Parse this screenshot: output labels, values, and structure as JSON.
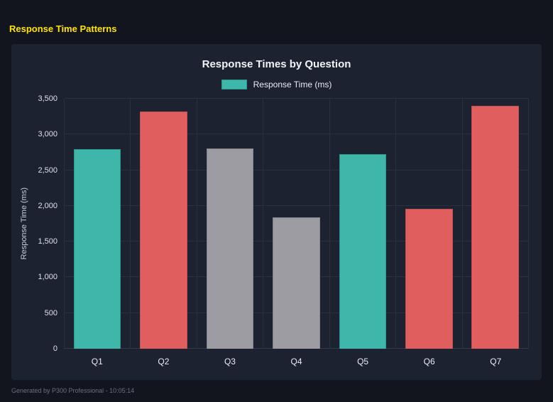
{
  "page": {
    "title": "Response Time Patterns",
    "footer": "Generated by P300 Professional - 10:05:14"
  },
  "chart_data": {
    "type": "bar",
    "title": "Response Times by Question",
    "categories": [
      "Q1",
      "Q2",
      "Q3",
      "Q4",
      "Q5",
      "Q6",
      "Q7"
    ],
    "values": [
      2790,
      3320,
      2800,
      1840,
      2720,
      1960,
      3400
    ],
    "colors": [
      "#3fb6aa",
      "#e05e5e",
      "#9c9ca2",
      "#9c9ca2",
      "#3fb6aa",
      "#e05e5e",
      "#e05e5e"
    ],
    "border_colors": [
      "#2f988e",
      "#c44f4f",
      "#82828a",
      "#82828a",
      "#2f988e",
      "#c44f4f",
      "#c44f4f"
    ],
    "xlabel": "",
    "ylabel": "Response Time (ms)",
    "ylim": [
      0,
      3500
    ],
    "ytick_values": [
      0,
      500,
      1000,
      1500,
      2000,
      2500,
      3000,
      3500
    ],
    "ytick_labels": [
      "0",
      "500",
      "1,000",
      "1,500",
      "2,000",
      "2,500",
      "3,000",
      "3,500"
    ],
    "legend": [
      "Response Time (ms)"
    ],
    "legend_position": "top",
    "legend_color": "#3fb6aa",
    "legend_border": "#2f988e",
    "grid": true
  }
}
